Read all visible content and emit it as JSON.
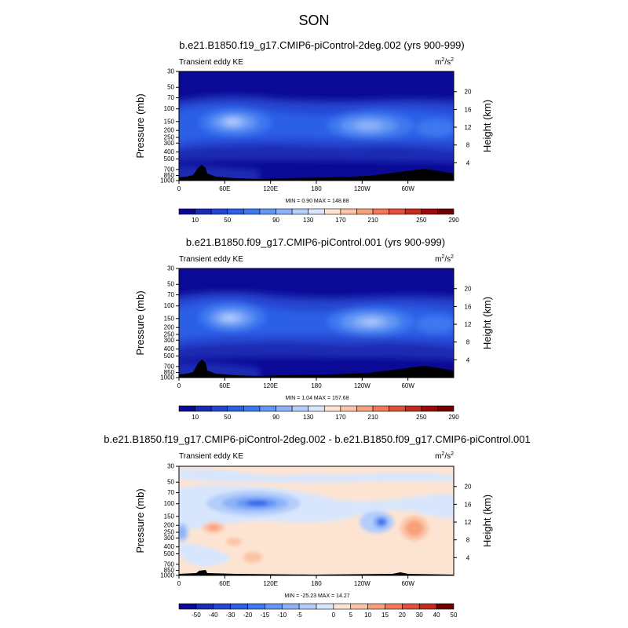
{
  "figure": {
    "title": "SON"
  },
  "chart_data": [
    {
      "type": "contour",
      "title": "b.e21.B1850.f19_g17.CMIP6-piControl-2deg.002 (yrs 900-999)",
      "left_string": "Transient eddy KE",
      "units": "m²/s²",
      "ylabel": "Pressure (mb)",
      "ylabel_right": "Height (km)",
      "pressure_ticks": [
        "30",
        "50",
        "70",
        "100",
        "150",
        "200",
        "250",
        "300",
        "400",
        "500",
        "700",
        "850",
        "1000"
      ],
      "height_ticks": [
        "20",
        "16",
        "12",
        "8",
        "4"
      ],
      "lon_ticks": [
        "0",
        "60E",
        "120E",
        "180",
        "120W",
        "60W"
      ],
      "stats": "MIN =   0.90  MAX = 148.88",
      "min": 0.9,
      "max": 148.88,
      "colorbar_labels": [
        "10",
        "50",
        "90",
        "130",
        "170",
        "210",
        "250",
        "290"
      ],
      "colorbar_colors": [
        "#0a0a96",
        "#1a2cb4",
        "#2546d2",
        "#2c5ee6",
        "#3c78f0",
        "#6496f4",
        "#8cb2f8",
        "#b4cdfb",
        "#d8e6fd",
        "#fde4d2",
        "#fbc4a6",
        "#f8a07c",
        "#f2785a",
        "#e0503a",
        "#c42a1e",
        "#9e0a0a",
        "#700000"
      ],
      "features": [
        {
          "lon": 70,
          "lev": 150,
          "value": 148
        },
        {
          "lon": 240,
          "lev": 180,
          "value": 120
        },
        {
          "lon": 300,
          "lev": 230,
          "value": 80
        }
      ]
    },
    {
      "type": "contour",
      "title": "b.e21.B1850.f09_g17.CMIP6-piControl.001 (yrs 900-999)",
      "left_string": "Transient eddy KE",
      "units": "m²/s²",
      "ylabel": "Pressure (mb)",
      "ylabel_right": "Height (km)",
      "pressure_ticks": [
        "30",
        "50",
        "70",
        "100",
        "150",
        "200",
        "250",
        "300",
        "400",
        "500",
        "700",
        "850",
        "1000"
      ],
      "height_ticks": [
        "20",
        "16",
        "12",
        "8",
        "4"
      ],
      "lon_ticks": [
        "0",
        "60E",
        "120E",
        "180",
        "120W",
        "60W"
      ],
      "stats": "MIN =   1.04  MAX = 157.68",
      "min": 1.04,
      "max": 157.68,
      "colorbar_labels": [
        "10",
        "50",
        "90",
        "130",
        "170",
        "210",
        "250",
        "290"
      ],
      "colorbar_colors": [
        "#0a0a96",
        "#1a2cb4",
        "#2546d2",
        "#2c5ee6",
        "#3c78f0",
        "#6496f4",
        "#8cb2f8",
        "#b4cdfb",
        "#d8e6fd",
        "#fde4d2",
        "#fbc4a6",
        "#f8a07c",
        "#f2785a",
        "#e0503a",
        "#c42a1e",
        "#9e0a0a",
        "#700000"
      ],
      "features": [
        {
          "lon": 65,
          "lev": 150,
          "value": 157
        },
        {
          "lon": 245,
          "lev": 180,
          "value": 135
        },
        {
          "lon": 300,
          "lev": 230,
          "value": 85
        }
      ]
    },
    {
      "type": "contour",
      "title": "b.e21.B1850.f19_g17.CMIP6-piControl-2deg.002 - b.e21.B1850.f09_g17.CMIP6-piControl.001",
      "left_string": "Transient eddy KE",
      "units": "m²/s²",
      "ylabel": "Pressure (mb)",
      "ylabel_right": "Height (km)",
      "pressure_ticks": [
        "30",
        "50",
        "70",
        "100",
        "150",
        "200",
        "250",
        "300",
        "400",
        "500",
        "700",
        "850",
        "1000"
      ],
      "height_ticks": [
        "20",
        "16",
        "12",
        "8",
        "4"
      ],
      "lon_ticks": [
        "0",
        "60E",
        "120E",
        "180",
        "120W",
        "60W"
      ],
      "stats": "MIN = -25.23  MAX =  14.27",
      "min": -25.23,
      "max": 14.27,
      "colorbar_labels": [
        "-50",
        "-40",
        "-30",
        "-20",
        "-15",
        "-10",
        "-5",
        "0",
        "5",
        "10",
        "15",
        "20",
        "30",
        "40",
        "50"
      ],
      "colorbar_colors": [
        "#0a0a96",
        "#1a2cb4",
        "#2546d2",
        "#2c5ee6",
        "#3c78f0",
        "#6496f4",
        "#8cb2f8",
        "#b4cdfb",
        "#d8e6fd",
        "#fde4d2",
        "#fbc4a6",
        "#f8a07c",
        "#f2785a",
        "#e0503a",
        "#c42a1e",
        "#700000"
      ],
      "features": [
        {
          "lon": 100,
          "lev": 100,
          "value": -25
        },
        {
          "lon": 250,
          "lev": 200,
          "value": -12
        },
        {
          "lon": 300,
          "lev": 250,
          "value": 14
        },
        {
          "lon": 60,
          "lev": 250,
          "value": 8
        },
        {
          "lon": 30,
          "lev": 250,
          "value": -10
        }
      ]
    }
  ]
}
